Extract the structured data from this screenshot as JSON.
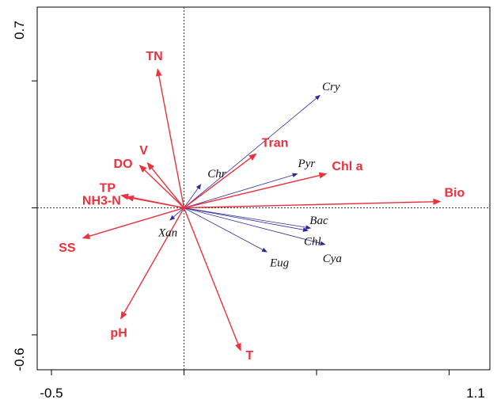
{
  "chart_data": {
    "type": "biplot",
    "xlim": [
      -0.5,
      1.1
    ],
    "ylim": [
      -0.6,
      0.7
    ],
    "x_tick_labels": [
      "-0.5",
      "1.1"
    ],
    "y_tick_labels": [
      "0.7",
      "-0.6"
    ],
    "grid": false,
    "colors": {
      "environment": "#e8323c",
      "species": "#2a2aa0"
    },
    "environmental_vectors": [
      {
        "label": "TN",
        "x": -0.1,
        "y": 0.55
      },
      {
        "label": "V",
        "x": -0.14,
        "y": 0.18
      },
      {
        "label": "DO",
        "x": -0.17,
        "y": 0.17
      },
      {
        "label": "TP",
        "x": -0.24,
        "y": 0.05
      },
      {
        "label": "NH3-N",
        "x": -0.22,
        "y": 0.043
      },
      {
        "label": "SS",
        "x": -0.385,
        "y": -0.12
      },
      {
        "label": "pH",
        "x": -0.24,
        "y": -0.44
      },
      {
        "label": "T",
        "x": 0.215,
        "y": -0.565
      },
      {
        "label": "Tran",
        "x": 0.275,
        "y": 0.215
      },
      {
        "label": "Chl a",
        "x": 0.54,
        "y": 0.135
      },
      {
        "label": "Bio",
        "x": 0.97,
        "y": 0.025
      }
    ],
    "species_vectors": [
      {
        "label": "Cry",
        "x": 0.515,
        "y": 0.445
      },
      {
        "label": "Pyr",
        "x": 0.43,
        "y": 0.135
      },
      {
        "label": "Chr",
        "x": 0.065,
        "y": 0.095
      },
      {
        "label": "Bac",
        "x": 0.48,
        "y": -0.08
      },
      {
        "label": "Chl",
        "x": 0.47,
        "y": -0.09
      },
      {
        "label": "Cya",
        "x": 0.535,
        "y": -0.145
      },
      {
        "label": "Eug",
        "x": 0.315,
        "y": -0.175
      },
      {
        "label": "Xan",
        "x": -0.055,
        "y": -0.05
      }
    ]
  }
}
